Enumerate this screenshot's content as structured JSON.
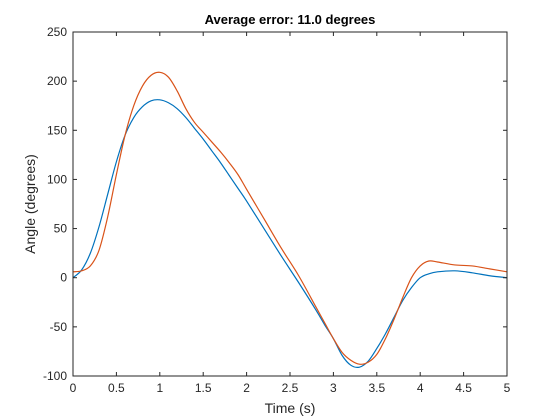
{
  "chart_data": {
    "type": "line",
    "title": "Average error:  11.0 degrees",
    "xlabel": "Time (s)",
    "ylabel": "Angle (degrees)",
    "xlim": [
      0,
      5
    ],
    "ylim": [
      -100,
      250
    ],
    "xticks": [
      0,
      0.5,
      1,
      1.5,
      2,
      2.5,
      3,
      3.5,
      4,
      4.5,
      5
    ],
    "xtick_labels": [
      "0",
      "0.5",
      "1",
      "1.5",
      "2",
      "2.5",
      "3",
      "3.5",
      "4",
      "4.5",
      "5"
    ],
    "yticks": [
      -100,
      -50,
      0,
      50,
      100,
      150,
      200,
      250
    ],
    "ytick_labels": [
      "-100",
      "-50",
      "0",
      "50",
      "100",
      "150",
      "200",
      "250"
    ],
    "grid": false,
    "series": [
      {
        "color": "#0072BD",
        "x": [
          0,
          0.1,
          0.2,
          0.3,
          0.4,
          0.5,
          0.6,
          0.7,
          0.8,
          0.9,
          1.0,
          1.1,
          1.2,
          1.3,
          1.4,
          1.5,
          1.6,
          1.7,
          1.8,
          1.9,
          2.0,
          2.2,
          2.4,
          2.6,
          2.8,
          2.9,
          3.0,
          3.1,
          3.2,
          3.3,
          3.4,
          3.5,
          3.6,
          3.7,
          3.8,
          3.9,
          4.0,
          4.1,
          4.2,
          4.4,
          4.6,
          4.8,
          5.0
        ],
        "y": [
          0,
          8,
          25,
          52,
          85,
          118,
          145,
          163,
          174,
          180,
          181,
          178,
          172,
          163,
          152,
          141,
          129,
          117,
          104,
          91,
          78,
          50,
          22,
          -5,
          -33,
          -48,
          -62,
          -79,
          -89,
          -91,
          -85,
          -72,
          -57,
          -40,
          -23,
          -10,
          0,
          4,
          6,
          7,
          5,
          2,
          0
        ]
      },
      {
        "color": "#D95319",
        "x": [
          0,
          0.1,
          0.2,
          0.3,
          0.4,
          0.5,
          0.6,
          0.7,
          0.8,
          0.9,
          1.0,
          1.1,
          1.2,
          1.3,
          1.4,
          1.5,
          1.6,
          1.7,
          1.8,
          1.9,
          2.0,
          2.2,
          2.4,
          2.6,
          2.8,
          2.9,
          3.0,
          3.1,
          3.2,
          3.3,
          3.4,
          3.5,
          3.6,
          3.7,
          3.8,
          3.9,
          4.0,
          4.1,
          4.2,
          4.4,
          4.6,
          4.8,
          5.0
        ],
        "y": [
          6,
          7,
          12,
          28,
          62,
          105,
          145,
          175,
          195,
          206,
          209,
          204,
          190,
          172,
          158,
          148,
          138,
          128,
          117,
          105,
          90,
          60,
          30,
          2,
          -30,
          -46,
          -62,
          -76,
          -84,
          -88,
          -86,
          -78,
          -62,
          -42,
          -20,
          0,
          12,
          17,
          16,
          13,
          12,
          9,
          6
        ]
      }
    ]
  }
}
